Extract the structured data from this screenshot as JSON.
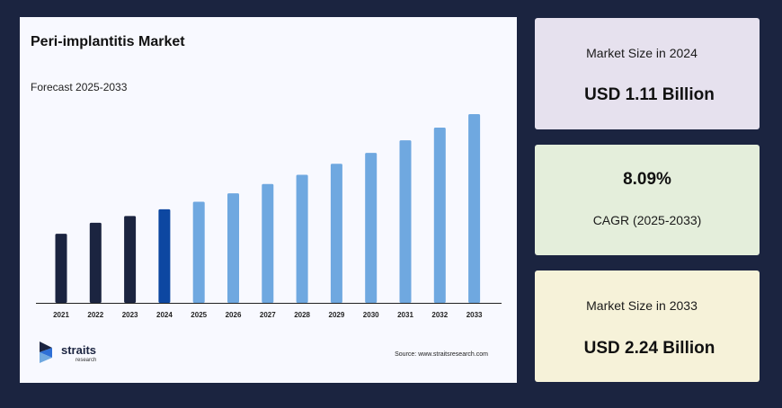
{
  "chart": {
    "title": "Peri-implantitis Market",
    "subtitle": "Forecast 2025-2033",
    "source": "Source: www.straitsresearch.com"
  },
  "logo": {
    "name": "straits",
    "sub": "research"
  },
  "cards": {
    "size_2024": {
      "label": "Market Size in 2024",
      "value": "USD 1.11 Billion"
    },
    "cagr": {
      "value": "8.09%",
      "label": "CAGR (2025-2033)"
    },
    "size_2033": {
      "label": "Market Size in 2033",
      "value": "USD 2.24 Billion"
    }
  },
  "colors": {
    "historic": "#1b2440",
    "base_year": "#0d47a1",
    "forecast": "#6fa8e0",
    "background": "#1b2440"
  },
  "chart_data": {
    "type": "bar",
    "categories": [
      "2021",
      "2022",
      "2023",
      "2024",
      "2025",
      "2026",
      "2027",
      "2028",
      "2029",
      "2030",
      "2031",
      "2032",
      "2033"
    ],
    "values": [
      0.82,
      0.95,
      1.03,
      1.11,
      1.2,
      1.3,
      1.41,
      1.52,
      1.65,
      1.78,
      1.93,
      2.08,
      2.24
    ],
    "bar_kind": [
      "historic",
      "historic",
      "historic",
      "base_year",
      "forecast",
      "forecast",
      "forecast",
      "forecast",
      "forecast",
      "forecast",
      "forecast",
      "forecast",
      "forecast"
    ],
    "title": "Peri-implantitis Market",
    "subtitle": "Forecast 2025-2033",
    "xlabel": "",
    "ylabel": "",
    "ylim": [
      0,
      2.24
    ],
    "grid": false,
    "legend": "none"
  }
}
